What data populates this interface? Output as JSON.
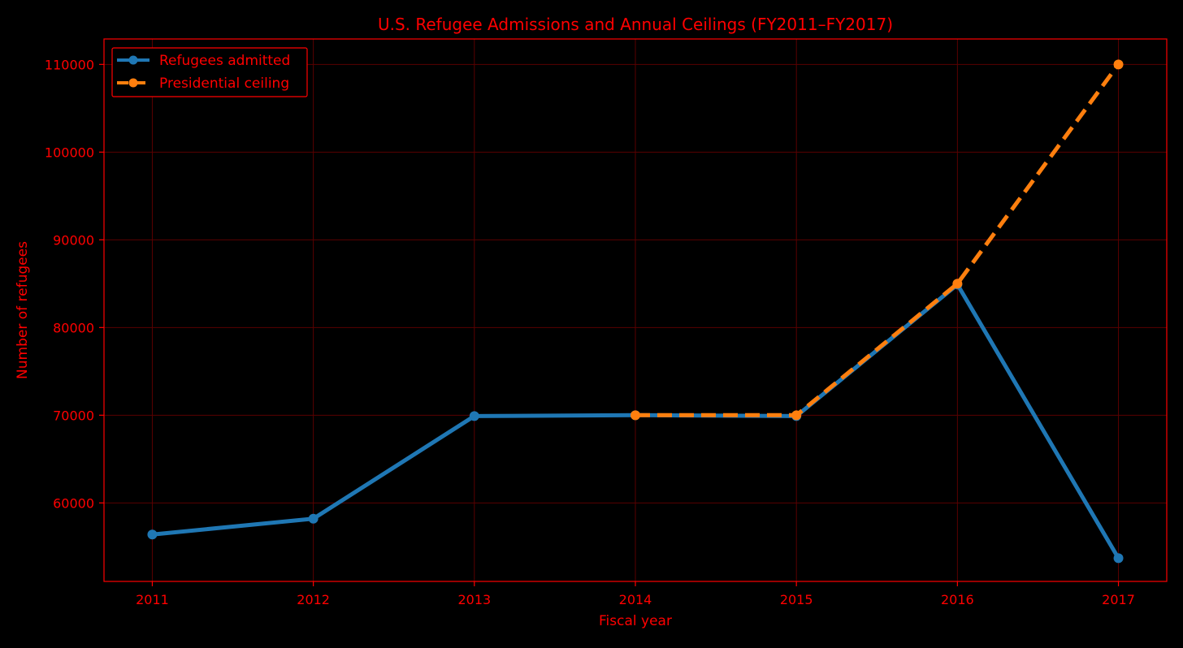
{
  "colors": {
    "background": "#000000",
    "text": "#ff0000",
    "frame": "#ff0000",
    "grid": "#5a0000",
    "admitted": "#1f77b4",
    "ceiling": "#ff7f0e"
  },
  "chart_data": {
    "type": "line",
    "title": "U.S. Refugee Admissions and Annual Ceilings (FY2011–FY2017)",
    "xlabel": "Fiscal year",
    "ylabel": "Number of refugees",
    "x": [
      2011,
      2012,
      2013,
      2014,
      2015,
      2016,
      2017
    ],
    "x_ticks": [
      "2011",
      "2012",
      "2013",
      "2014",
      "2015",
      "2016",
      "2017"
    ],
    "y_ticks": [
      "60000",
      "70000",
      "80000",
      "90000",
      "100000",
      "110000"
    ],
    "xlim": [
      2010.7,
      2017.3
    ],
    "ylim": [
      51050,
      112900
    ],
    "grid": true,
    "legend_position": "top-left",
    "series": [
      {
        "name": "Refugees admitted",
        "style": "solid",
        "color": "#1f77b4",
        "x": [
          2011,
          2012,
          2013,
          2014,
          2015,
          2016,
          2017
        ],
        "values": [
          56400,
          58200,
          69900,
          70000,
          69900,
          84900,
          53700
        ]
      },
      {
        "name": "Presidential ceiling",
        "style": "dashed",
        "color": "#ff7f0e",
        "x": [
          2014,
          2015,
          2016,
          2017
        ],
        "values": [
          70000,
          70000,
          85000,
          110000
        ]
      }
    ]
  }
}
